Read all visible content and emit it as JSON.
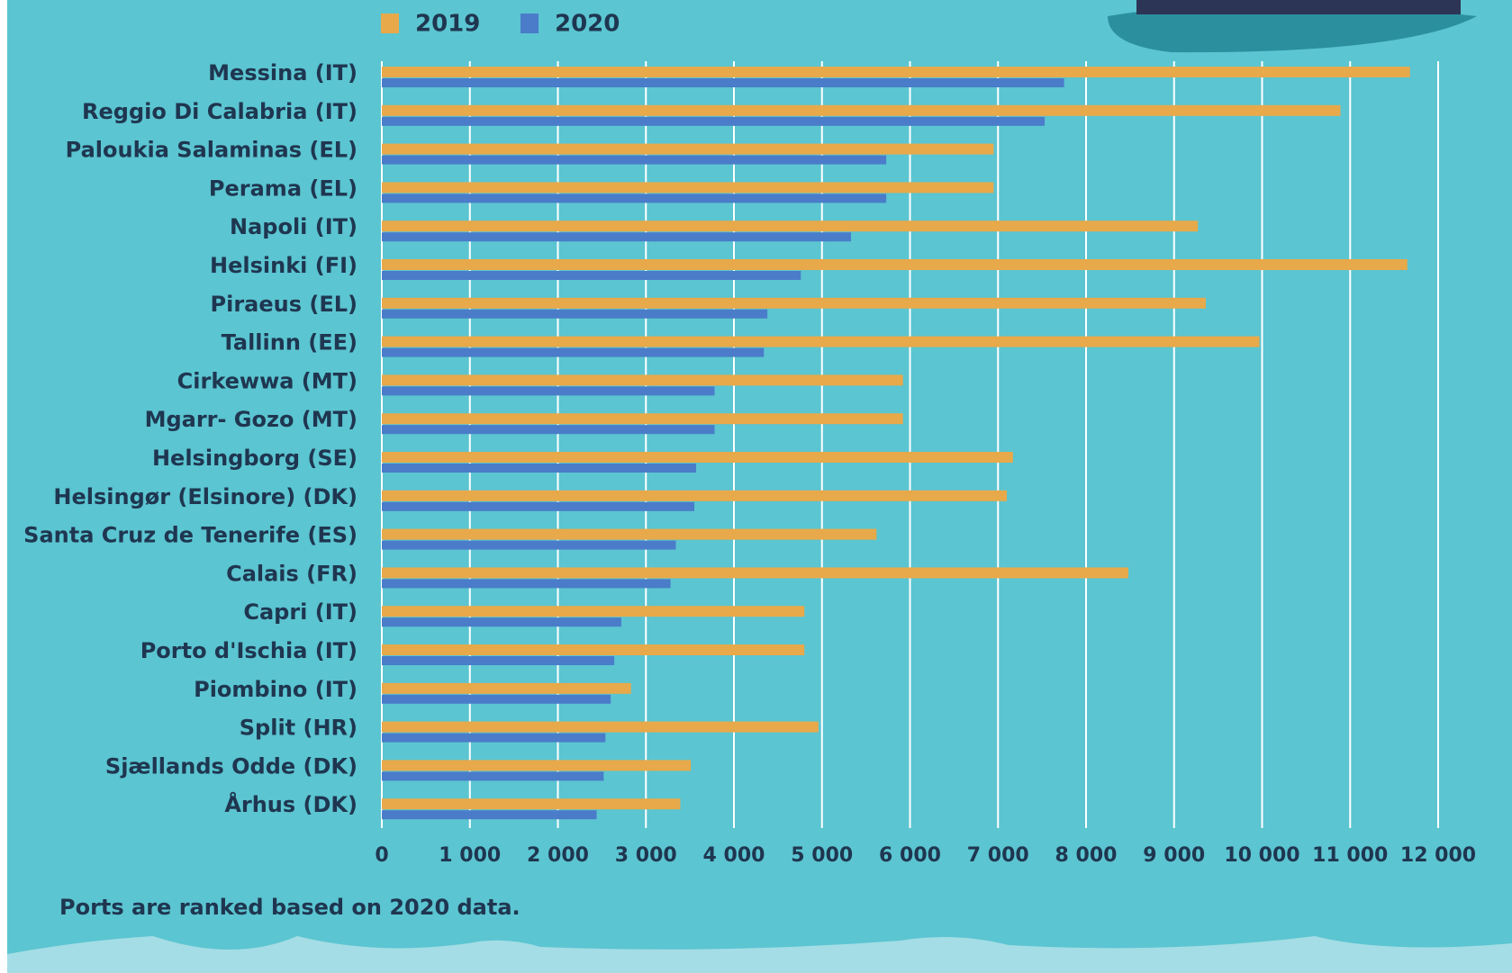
{
  "chart_data": {
    "type": "bar",
    "orientation": "horizontal",
    "note": "Ports are ranked based on 2020 data.",
    "categories": [
      "Messina (IT)",
      "Reggio Di Calabria (IT)",
      "Paloukia Salaminas (EL)",
      "Perama (EL)",
      "Napoli (IT)",
      "Helsinki (FI)",
      "Piraeus (EL)",
      "Tallinn (EE)",
      "Cirkewwa (MT)",
      "Mgarr- Gozo (MT)",
      "Helsingborg (SE)",
      "Helsingør (Elsinore) (DK)",
      "Santa Cruz de Tenerife (ES)",
      "Calais (FR)",
      "Capri (IT)",
      "Porto d'Ischia (IT)",
      "Piombino (IT)",
      "Split (HR)",
      "Sjællands Odde (DK)",
      "Århus (DK)"
    ],
    "series": [
      {
        "name": "2019",
        "color": "#e8a94a",
        "values": [
          11680,
          10890,
          6950,
          6950,
          9270,
          11650,
          9360,
          9970,
          5920,
          5920,
          7170,
          7100,
          5620,
          8480,
          4800,
          4800,
          2830,
          4960,
          3510,
          3390
        ]
      },
      {
        "name": "2020",
        "color": "#4a7cc9",
        "values": [
          7750,
          7530,
          5730,
          5730,
          5330,
          4760,
          4380,
          4340,
          3780,
          3780,
          3570,
          3550,
          3340,
          3280,
          2720,
          2640,
          2600,
          2540,
          2520,
          2440
        ]
      }
    ],
    "xlim": [
      0,
      12000
    ],
    "xticks": [
      0,
      {
        "value": 1000,
        "label": "1 000"
      },
      {
        "value": 2000,
        "label": "2 000"
      },
      {
        "value": 3000,
        "label": "3 000"
      },
      {
        "value": 4000,
        "label": "4 000"
      },
      {
        "value": 5000,
        "label": "5 000"
      },
      {
        "value": 6000,
        "label": "6 000"
      },
      {
        "value": 7000,
        "label": "7 000"
      },
      {
        "value": 8000,
        "label": "8 000"
      },
      {
        "value": 9000,
        "label": "9 000"
      },
      {
        "value": 10000,
        "label": "10 000"
      },
      {
        "value": 11000,
        "label": "11 000"
      },
      {
        "value": 12000,
        "label": "12 000"
      }
    ],
    "grid": true,
    "legend": "top"
  }
}
